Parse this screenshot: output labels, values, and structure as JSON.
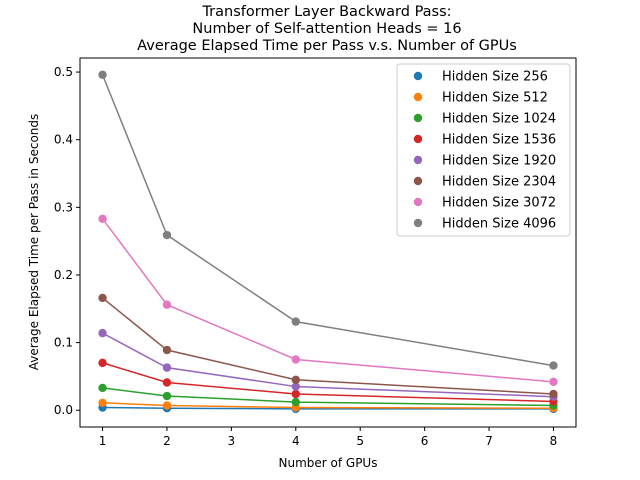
{
  "chart_data": {
    "type": "line",
    "title_lines": [
      "Transformer Layer Backward Pass:",
      "Number of Self-attention Heads = 16",
      "Average Elapsed Time per Pass v.s. Number of GPUs"
    ],
    "xlabel": "Number of GPUs",
    "ylabel": "Average Elapsed Time per Pass in Seconds",
    "x": [
      1,
      2,
      4,
      8
    ],
    "xlim": [
      0.65,
      8.35
    ],
    "ylim": [
      -0.0248,
      0.5208
    ],
    "xticks": [
      1,
      2,
      3,
      4,
      5,
      6,
      7,
      8
    ],
    "xtick_labels": [
      "1",
      "2",
      "3",
      "4",
      "5",
      "6",
      "7",
      "8"
    ],
    "yticks": [
      0.0,
      0.1,
      0.2,
      0.3,
      0.4,
      0.5
    ],
    "ytick_labels": [
      "0.0",
      "0.1",
      "0.2",
      "0.3",
      "0.4",
      "0.5"
    ],
    "grid": false,
    "legend_position": "top-right",
    "series": [
      {
        "name": "Hidden Size 256",
        "color": "#1f77b4",
        "values": [
          0.004,
          0.003,
          0.002,
          0.002
        ]
      },
      {
        "name": "Hidden Size 512",
        "color": "#ff7f0e",
        "values": [
          0.011,
          0.007,
          0.004,
          0.003
        ]
      },
      {
        "name": "Hidden Size 1024",
        "color": "#2ca02c",
        "values": [
          0.033,
          0.021,
          0.012,
          0.007
        ]
      },
      {
        "name": "Hidden Size 1536",
        "color": "#d62728",
        "values": [
          0.07,
          0.041,
          0.024,
          0.013
        ]
      },
      {
        "name": "Hidden Size 1920",
        "color": "#9467bd",
        "values": [
          0.114,
          0.063,
          0.035,
          0.02
        ]
      },
      {
        "name": "Hidden Size 2304",
        "color": "#8c564b",
        "values": [
          0.166,
          0.089,
          0.045,
          0.024
        ]
      },
      {
        "name": "Hidden Size 3072",
        "color": "#e377c2",
        "values": [
          0.283,
          0.156,
          0.075,
          0.042
        ]
      },
      {
        "name": "Hidden Size 4096",
        "color": "#7f7f7f",
        "values": [
          0.496,
          0.259,
          0.131,
          0.066
        ]
      }
    ]
  }
}
